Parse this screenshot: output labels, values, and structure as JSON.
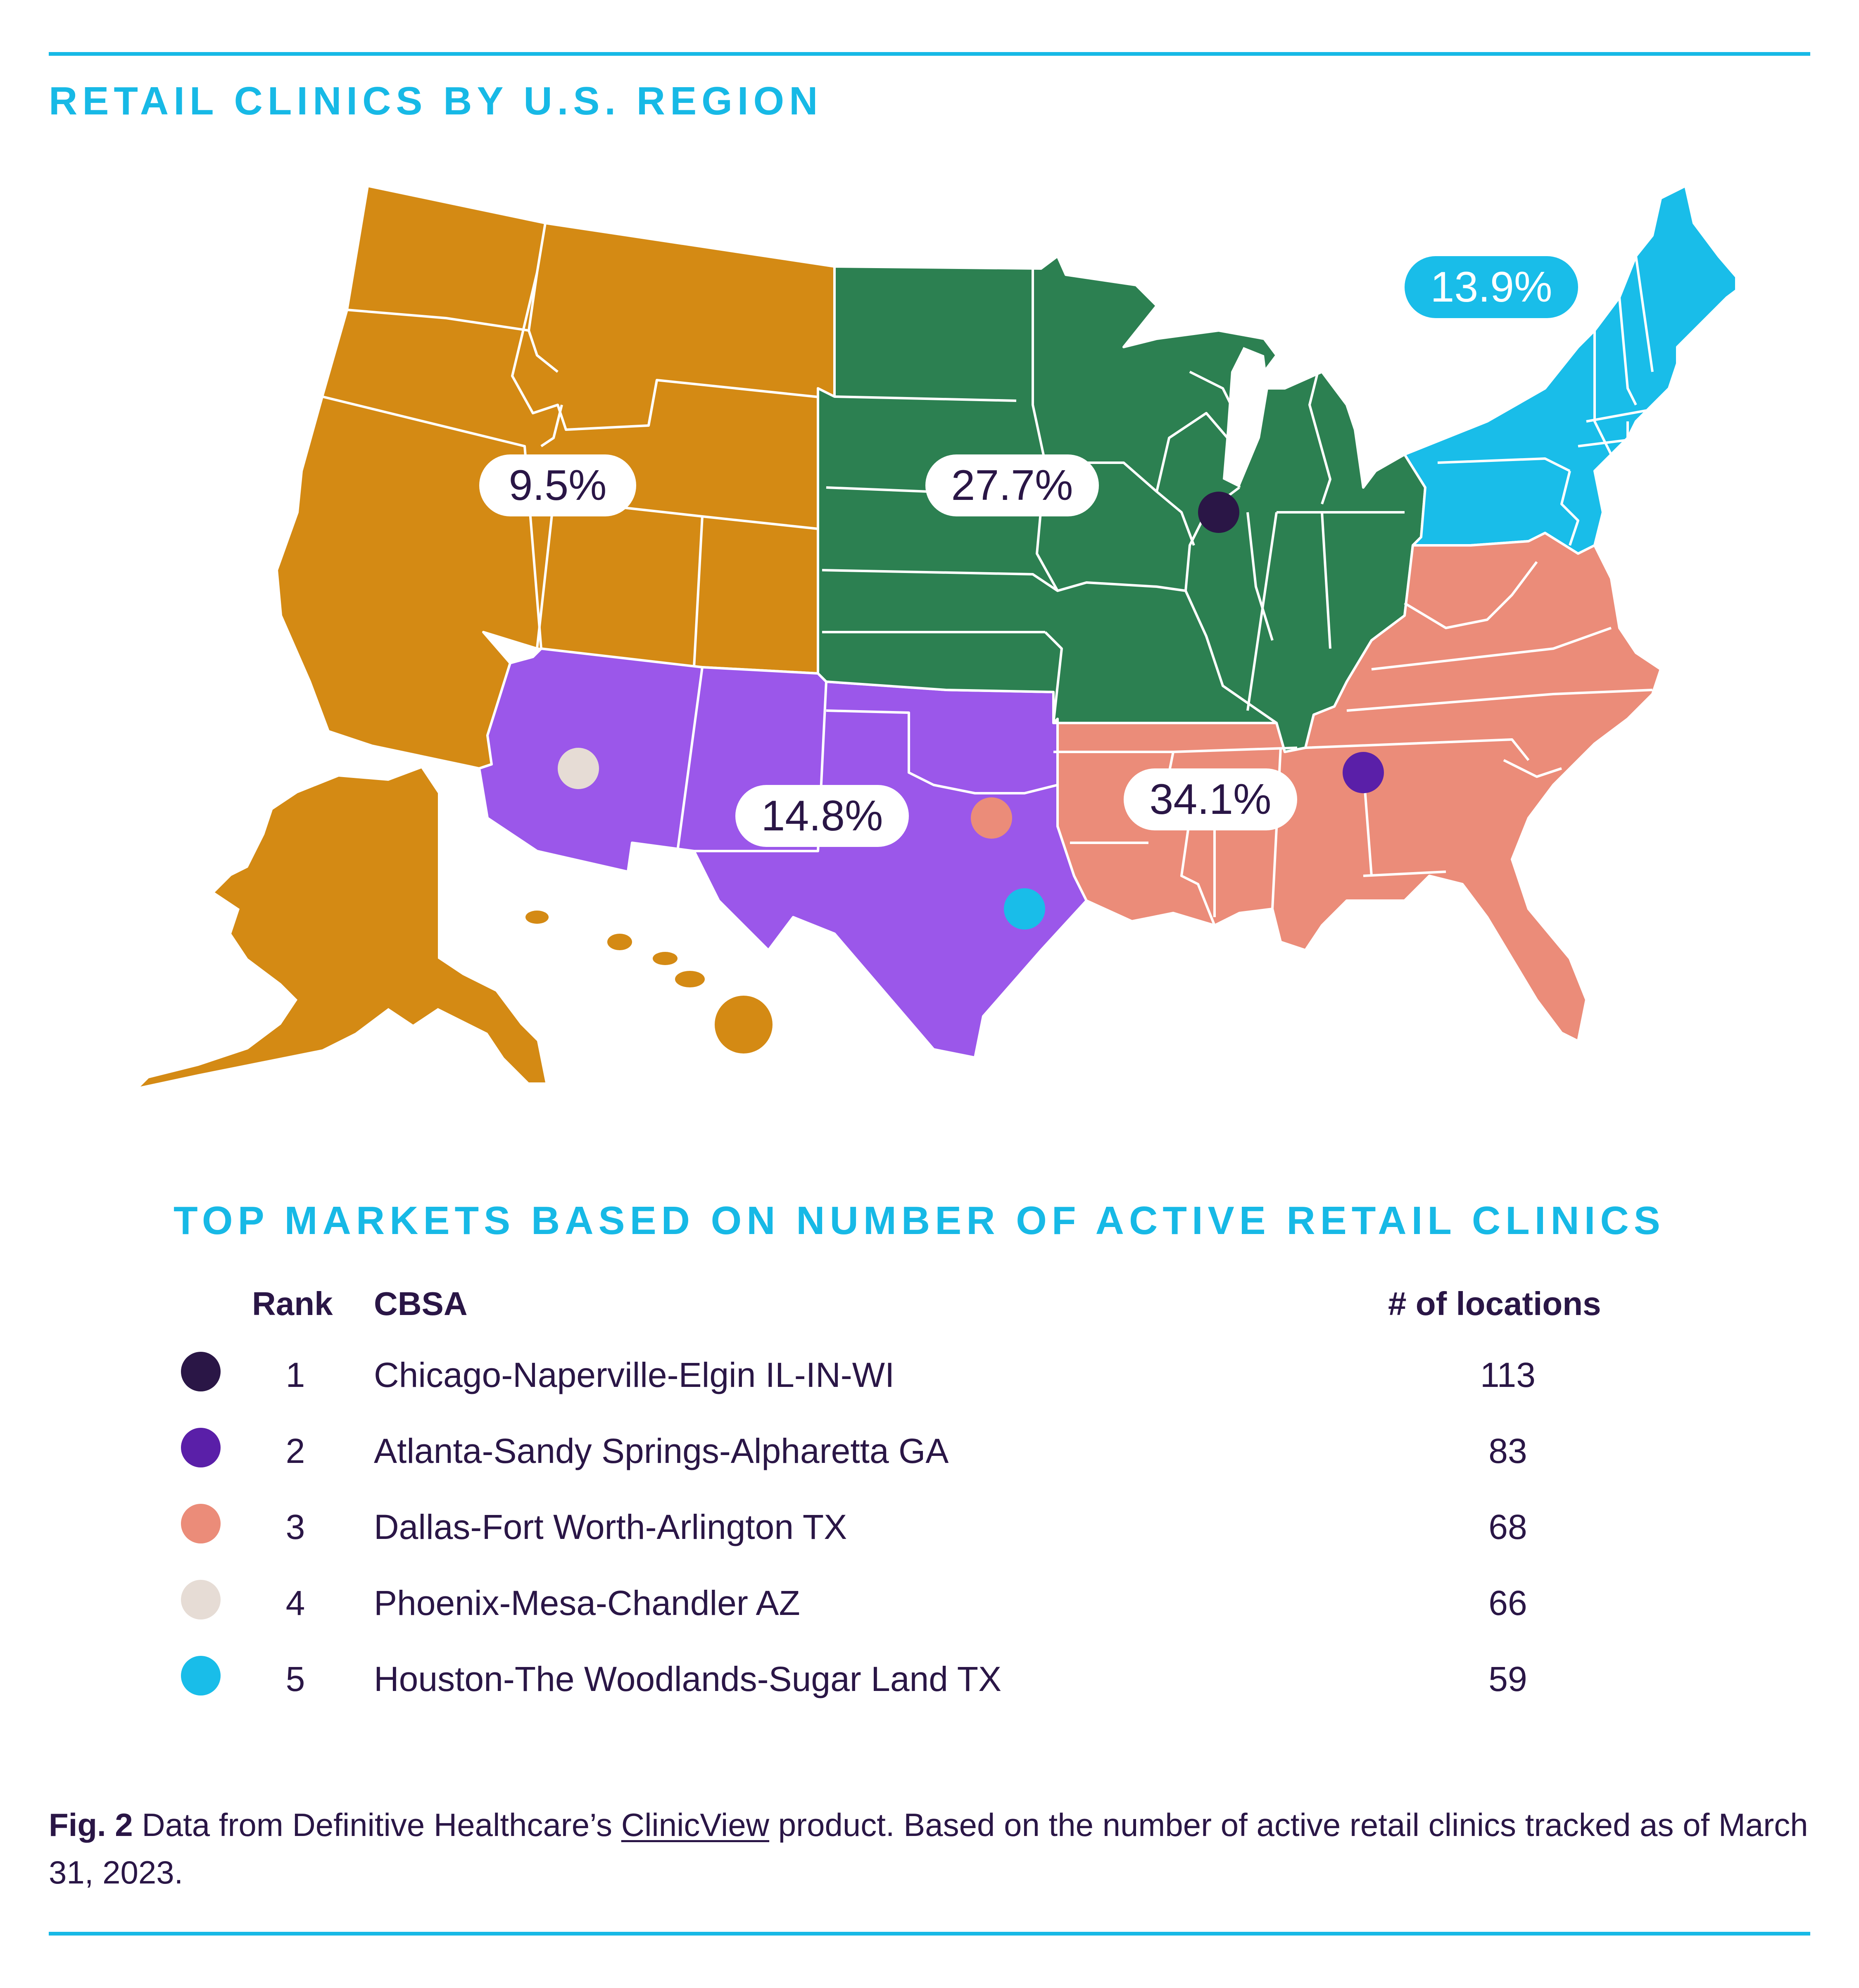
{
  "map_title": "RETAIL CLINICS BY U.S. REGION",
  "regions": [
    {
      "name": "West",
      "share": "9.5%",
      "color": "#d48a14"
    },
    {
      "name": "Midwest",
      "share": "27.7%",
      "color": "#2c8051"
    },
    {
      "name": "Northeast",
      "share": "13.9%",
      "color": "#19bde9"
    },
    {
      "name": "Southwest",
      "share": "14.8%",
      "color": "#9b57ea"
    },
    {
      "name": "Southeast",
      "share": "34.1%",
      "color": "#eb8c79"
    }
  ],
  "table": {
    "title": "TOP MARKETS BASED ON NUMBER OF ACTIVE RETAIL CLINICS",
    "headers": {
      "rank": "Rank",
      "cbsa": "CBSA",
      "locations": "# of locations"
    },
    "rows": [
      {
        "rank": "1",
        "cbsa": "Chicago-Naperville-Elgin IL-IN-WI",
        "locations": "113",
        "color": "#2a1646"
      },
      {
        "rank": "2",
        "cbsa": "Atlanta-Sandy Springs-Alpharetta GA",
        "locations": "83",
        "color": "#5a1fa8"
      },
      {
        "rank": "3",
        "cbsa": "Dallas-Fort Worth-Arlington TX",
        "locations": "68",
        "color": "#eb8c79"
      },
      {
        "rank": "4",
        "cbsa": "Phoenix-Mesa-Chandler AZ",
        "locations": "66",
        "color": "#e6dcd5"
      },
      {
        "rank": "5",
        "cbsa": "Houston-The Woodlands-Sugar Land TX",
        "locations": "59",
        "color": "#19bde9"
      }
    ]
  },
  "caption": {
    "fig_label": "Fig. 2",
    "text_before_link": " Data from Definitive Healthcare’s ",
    "link_text": "ClinicView",
    "text_after_link": " product. Based on the number of active retail clinics tracked as of March 31, 2023."
  }
}
